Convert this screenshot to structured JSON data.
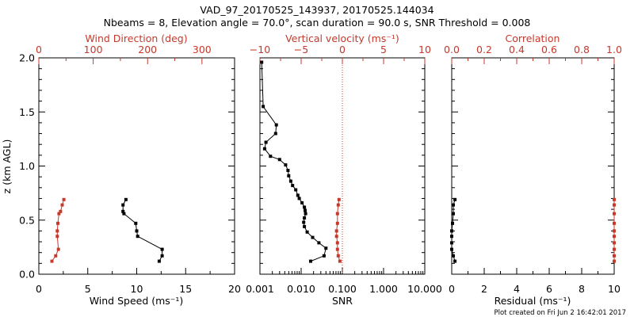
{
  "title_line1": "VAD_97_20170525_143937, 20170525.144034",
  "title_line2": "Nbeams = 8, Elevation angle = 70.0°, scan duration = 90.0 s, SNR Threshold = 0.008",
  "footer": "Plot created on Fri Jun  2 16:42:01 2017",
  "colors": {
    "primary": "#000000",
    "secondary": "#c8382a"
  },
  "chart_data": [
    {
      "type": "line",
      "panel": "wind",
      "ylabel": "z (km AGL)",
      "ylim": [
        0,
        2
      ],
      "yticks": [
        "0.0",
        "0.5",
        "1.0",
        "1.5",
        "2.0"
      ],
      "xlabel": "Wind Speed (ms⁻¹)",
      "xlim": [
        0,
        20
      ],
      "xticks": [
        "0",
        "5",
        "10",
        "15",
        "20"
      ],
      "x2label": "Wind Direction (deg)",
      "x2lim": [
        0,
        360
      ],
      "x2ticks": [
        "0",
        "100",
        "200",
        "300"
      ],
      "series": [
        {
          "name": "Wind Speed",
          "axis": "bottom",
          "color": "#000000",
          "x": [
            12.3,
            12.6,
            12.6,
            10.1,
            10.0,
            9.9,
            8.7,
            8.6,
            8.6,
            8.9
          ],
          "y": [
            0.12,
            0.17,
            0.23,
            0.35,
            0.4,
            0.47,
            0.56,
            0.58,
            0.64,
            0.69
          ]
        },
        {
          "name": "Wind Direction",
          "axis": "top",
          "color": "#c8382a",
          "x": [
            24,
            31,
            36,
            34,
            34,
            35,
            37,
            40,
            43,
            46
          ],
          "y": [
            0.12,
            0.17,
            0.23,
            0.35,
            0.4,
            0.47,
            0.56,
            0.58,
            0.64,
            0.69
          ]
        }
      ]
    },
    {
      "type": "line",
      "panel": "snr",
      "xlabel": "SNR",
      "xscale": "log",
      "xlim": [
        0.001,
        10
      ],
      "xticks": [
        "0.001",
        "0.010",
        "0.100",
        "1.000",
        "10.000"
      ],
      "x2label": "Vertical velocity (ms⁻¹)",
      "x2lim": [
        -10,
        10
      ],
      "x2ticks": [
        "−10",
        "−5",
        "0",
        "5",
        "10"
      ],
      "x2_zero_line": 0,
      "series": [
        {
          "name": "SNR",
          "axis": "bottom",
          "color": "#000000",
          "x": [
            0.0011,
            0.0012,
            0.0025,
            0.0024,
            0.0014,
            0.0013,
            0.0018,
            0.003,
            0.0042,
            0.0048,
            0.005,
            0.0056,
            0.0062,
            0.0074,
            0.0083,
            0.009,
            0.0105,
            0.012,
            0.0125,
            0.0128,
            0.012,
            0.0115,
            0.012,
            0.014,
            0.019,
            0.027,
            0.04,
            0.036,
            0.017
          ],
          "y": [
            1.96,
            1.55,
            1.38,
            1.3,
            1.22,
            1.16,
            1.09,
            1.06,
            1.01,
            0.96,
            0.91,
            0.86,
            0.82,
            0.78,
            0.73,
            0.7,
            0.66,
            0.62,
            0.59,
            0.56,
            0.52,
            0.48,
            0.44,
            0.39,
            0.34,
            0.29,
            0.24,
            0.17,
            0.12
          ]
        },
        {
          "name": "Vertical velocity",
          "axis": "top",
          "color": "#c8382a",
          "x": [
            -0.3,
            -0.5,
            -0.6,
            -0.6,
            -0.7,
            -0.7,
            -0.6,
            -0.6,
            -0.5,
            -0.4
          ],
          "y": [
            0.12,
            0.17,
            0.23,
            0.29,
            0.35,
            0.4,
            0.47,
            0.56,
            0.64,
            0.69
          ]
        }
      ]
    },
    {
      "type": "line",
      "panel": "residual",
      "xlabel": "Residual (ms⁻¹)",
      "xlim": [
        0,
        10
      ],
      "xticks": [
        "0",
        "2",
        "4",
        "6",
        "8",
        "10"
      ],
      "x2label": "Correlation",
      "x2lim": [
        0,
        1
      ],
      "x2ticks": [
        "0.0",
        "0.2",
        "0.4",
        "0.6",
        "0.8",
        "1.0"
      ],
      "series": [
        {
          "name": "Residual",
          "axis": "bottom",
          "color": "#000000",
          "x": [
            0.2,
            0.1,
            0.0,
            0.0,
            0.0,
            0.0,
            0.05,
            0.1,
            0.1,
            0.2
          ],
          "y": [
            0.12,
            0.17,
            0.23,
            0.29,
            0.35,
            0.4,
            0.47,
            0.56,
            0.64,
            0.69
          ]
        },
        {
          "name": "Correlation",
          "axis": "top",
          "color": "#c8382a",
          "x": [
            1.0,
            1.0,
            1.0,
            1.0,
            1.0,
            1.0,
            1.0,
            1.0,
            1.0,
            1.0
          ],
          "y": [
            0.12,
            0.17,
            0.23,
            0.29,
            0.35,
            0.4,
            0.47,
            0.56,
            0.64,
            0.69
          ]
        }
      ]
    }
  ]
}
